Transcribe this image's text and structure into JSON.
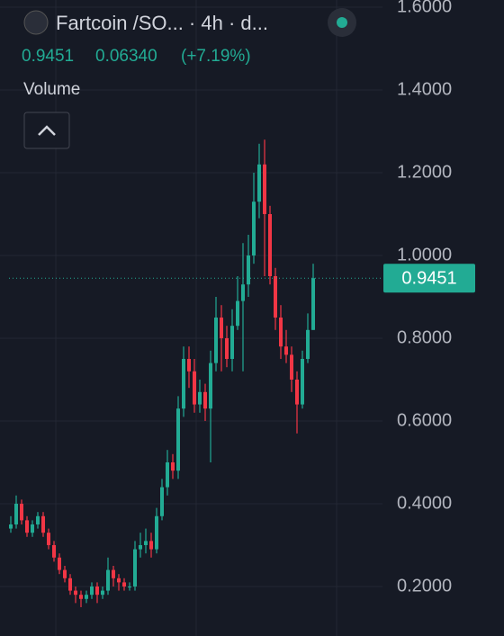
{
  "header": {
    "title": "Fartcoin /SO... · 4h · d...",
    "price": "0.9451",
    "change": "0.06340",
    "change_pct": "(+7.19%)",
    "indicator": "Volume"
  },
  "chart_data": {
    "type": "candlestick",
    "open": [
      0.34,
      0.35,
      0.4,
      0.36,
      0.33,
      0.35,
      0.37,
      0.33,
      0.3,
      0.27,
      0.24,
      0.22,
      0.19,
      0.18,
      0.17,
      0.18,
      0.2,
      0.18,
      0.19,
      0.24,
      0.22,
      0.21,
      0.2,
      0.2,
      0.29,
      0.3,
      0.31,
      0.29,
      0.37,
      0.44,
      0.5,
      0.48,
      0.63,
      0.75,
      0.72,
      0.64,
      0.67,
      0.63,
      0.74,
      0.85,
      0.8,
      0.75,
      0.83,
      0.89,
      0.93,
      1.0,
      1.13,
      1.22,
      1.1,
      0.95,
      0.85,
      0.78,
      0.76,
      0.7,
      0.64,
      0.75,
      0.82
    ],
    "high": [
      0.37,
      0.42,
      0.41,
      0.37,
      0.36,
      0.38,
      0.38,
      0.34,
      0.31,
      0.28,
      0.25,
      0.23,
      0.2,
      0.19,
      0.19,
      0.21,
      0.21,
      0.2,
      0.27,
      0.25,
      0.23,
      0.22,
      0.21,
      0.31,
      0.33,
      0.34,
      0.33,
      0.39,
      0.46,
      0.53,
      0.52,
      0.66,
      0.78,
      0.78,
      0.75,
      0.7,
      0.69,
      0.77,
      0.9,
      0.88,
      0.83,
      0.87,
      0.95,
      1.03,
      1.05,
      1.2,
      1.27,
      1.28,
      1.12,
      0.97,
      0.88,
      0.82,
      0.78,
      0.72,
      0.77,
      0.86,
      0.98
    ],
    "low": [
      0.33,
      0.34,
      0.35,
      0.32,
      0.32,
      0.34,
      0.32,
      0.29,
      0.26,
      0.23,
      0.21,
      0.18,
      0.16,
      0.15,
      0.16,
      0.17,
      0.16,
      0.17,
      0.18,
      0.2,
      0.19,
      0.19,
      0.19,
      0.19,
      0.27,
      0.28,
      0.27,
      0.28,
      0.36,
      0.42,
      0.46,
      0.46,
      0.61,
      0.68,
      0.62,
      0.62,
      0.6,
      0.5,
      0.72,
      0.72,
      0.73,
      0.72,
      0.82,
      0.72,
      0.9,
      0.98,
      1.09,
      0.95,
      0.93,
      0.82,
      0.75,
      0.74,
      0.67,
      0.57,
      0.63,
      0.74,
      0.82
    ],
    "close": [
      0.35,
      0.4,
      0.36,
      0.33,
      0.35,
      0.37,
      0.33,
      0.3,
      0.27,
      0.24,
      0.22,
      0.19,
      0.18,
      0.17,
      0.18,
      0.2,
      0.18,
      0.19,
      0.24,
      0.22,
      0.21,
      0.2,
      0.2,
      0.29,
      0.3,
      0.31,
      0.29,
      0.37,
      0.44,
      0.5,
      0.48,
      0.63,
      0.75,
      0.72,
      0.64,
      0.67,
      0.63,
      0.74,
      0.85,
      0.8,
      0.75,
      0.83,
      0.89,
      0.93,
      1.0,
      1.13,
      1.22,
      1.1,
      0.95,
      0.85,
      0.78,
      0.76,
      0.7,
      0.64,
      0.75,
      0.82,
      0.9451
    ],
    "up_color": "#22ab94",
    "down_color": "#f23645",
    "last_price": 0.9451,
    "ylim": [
      0.0804,
      1.6174
    ],
    "yticks": [
      {
        "value": 0.2,
        "label": "0.2000"
      },
      {
        "value": 0.4,
        "label": "0.4000"
      },
      {
        "value": 0.6,
        "label": "0.6000"
      },
      {
        "value": 0.8,
        "label": "0.8000"
      },
      {
        "value": 1.0,
        "label": "1.0000"
      },
      {
        "value": 1.2,
        "label": "1.2000"
      },
      {
        "value": 1.4,
        "label": "1.4000"
      },
      {
        "value": 1.6,
        "label": "1.6000"
      }
    ],
    "grid": true
  }
}
